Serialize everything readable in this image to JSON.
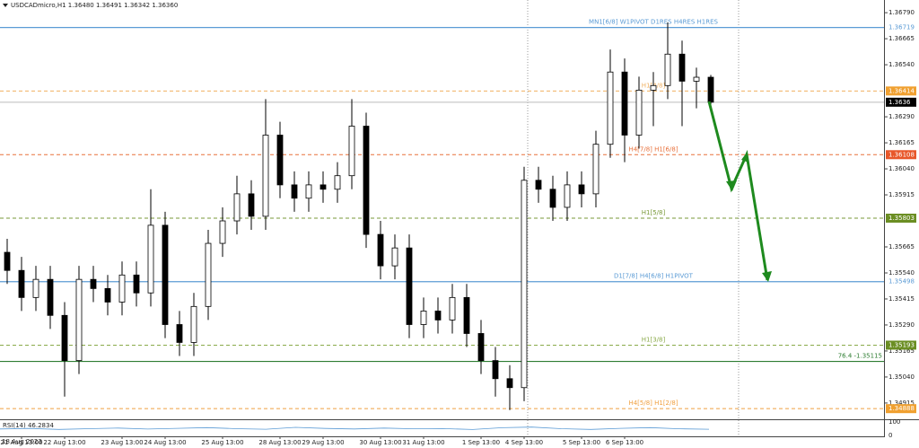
{
  "chart_data": {
    "type": "candlestick",
    "title": "USDCADmicro,H1 1.36480 1.36491 1.36342 1.36360",
    "categories": [
      null,
      "21 Aug 13:00",
      null,
      null,
      "22 Aug 13:00",
      null,
      null,
      null,
      "23 Aug 13:00",
      null,
      null,
      "24 Aug 13:00",
      null,
      null,
      null,
      "25 Aug 13:00",
      null,
      null,
      null,
      "28 Aug 13:00",
      null,
      null,
      "29 Aug 13:00",
      null,
      null,
      null,
      "30 Aug 13:00",
      null,
      null,
      "31 Aug 13:00",
      null,
      null,
      null,
      "1 Sep 13:00",
      null,
      null,
      "4 Sep 13:00",
      null,
      null,
      null,
      "5 Sep 13:00",
      null,
      null,
      "6 Sep 13:00",
      null,
      null,
      null,
      null,
      null,
      null
    ],
    "first_label": "18 Aug 2023",
    "open": [
      1.35639,
      1.35552,
      1.35422,
      1.35509,
      1.35336,
      1.35119,
      1.35509,
      1.35465,
      1.354,
      1.3553,
      1.35444,
      1.35769,
      1.35292,
      1.35206,
      1.35379,
      1.35682,
      1.3579,
      1.3592,
      1.35812,
      1.36202,
      1.35963,
      1.35899,
      1.35963,
      1.35942,
      1.36007,
      1.36245,
      1.35725,
      1.35574,
      1.3566,
      1.35292,
      1.35357,
      1.35314,
      1.35422,
      1.35249,
      1.35119,
      1.35032,
      1.34989,
      1.35985,
      1.35942,
      1.35855,
      1.35963,
      1.3592,
      1.36158,
      1.36505,
      1.36202,
      1.36418,
      1.3644,
      1.36591,
      1.36461,
      1.3648
    ],
    "high": [
      1.35704,
      1.35617,
      1.35574,
      1.35574,
      1.354,
      1.35574,
      1.35574,
      1.3553,
      1.35595,
      1.35595,
      1.35942,
      1.35834,
      1.35357,
      1.35444,
      1.35747,
      1.35855,
      1.36007,
      1.35985,
      1.36375,
      1.36266,
      1.36028,
      1.36028,
      1.36028,
      1.36072,
      1.36375,
      1.3631,
      1.3579,
      1.35725,
      1.35725,
      1.35422,
      1.35422,
      1.35487,
      1.35487,
      1.35314,
      1.35184,
      1.35097,
      1.3605,
      1.3605,
      1.36007,
      1.36028,
      1.36028,
      1.36223,
      1.36613,
      1.3657,
      1.36483,
      1.36505,
      1.36743,
      1.36656,
      1.36526,
      1.36491
    ],
    "low": [
      1.35487,
      1.35357,
      1.35357,
      1.35271,
      1.34946,
      1.35054,
      1.354,
      1.35336,
      1.35336,
      1.35379,
      1.35379,
      1.35227,
      1.35141,
      1.35141,
      1.35314,
      1.35617,
      1.35725,
      1.35747,
      1.35747,
      1.35899,
      1.35834,
      1.35834,
      1.35877,
      1.35877,
      1.35942,
      1.3566,
      1.35509,
      1.35509,
      1.35227,
      1.35227,
      1.35249,
      1.35249,
      1.35184,
      1.35054,
      1.34946,
      1.34881,
      1.34924,
      1.35877,
      1.3579,
      1.3579,
      1.35855,
      1.35855,
      1.36093,
      1.36072,
      1.36137,
      1.36245,
      1.36375,
      1.36245,
      1.36331,
      1.36342
    ],
    "close": [
      1.35552,
      1.35422,
      1.35509,
      1.35336,
      1.35119,
      1.35509,
      1.35465,
      1.354,
      1.3553,
      1.35444,
      1.35769,
      1.35292,
      1.35206,
      1.35379,
      1.35682,
      1.3579,
      1.3592,
      1.35812,
      1.36202,
      1.35963,
      1.35899,
      1.35963,
      1.35942,
      1.36007,
      1.36245,
      1.35725,
      1.35574,
      1.3566,
      1.35292,
      1.35357,
      1.35314,
      1.35422,
      1.35249,
      1.35119,
      1.35032,
      1.34989,
      1.35985,
      1.35942,
      1.35855,
      1.35963,
      1.3592,
      1.36158,
      1.36505,
      1.36202,
      1.36418,
      1.3644,
      1.36591,
      1.36461,
      1.3648,
      1.3636
    ],
    "ylim": [
      1.34837,
      1.36851
    ],
    "yticks": [
      {
        "value": 1.3679,
        "label": "1.36790"
      },
      1.36665,
      {
        "value": 1.3654,
        "label": "1.36540"
      },
      {
        "value": 1.3629,
        "label": "1.36290"
      },
      1.36165,
      {
        "value": 1.3604,
        "label": "1.36040"
      },
      1.35915,
      1.35665,
      {
        "value": 1.3554,
        "label": "1.35540"
      },
      1.35415,
      {
        "value": 1.3529,
        "label": "1.35290"
      },
      1.35165,
      {
        "value": 1.3504,
        "label": "1.35040"
      },
      1.34915
    ],
    "levels": [
      {
        "value": 1.36719,
        "label": "MN1[6/8] W1PIVOT D1RES H4RES H1RES",
        "color": "#5b9bd5",
        "dashed": false,
        "box": "#ffffff"
      },
      {
        "value": 1.36414,
        "label": "H1[4/8]",
        "color": "#f0b060",
        "dashed": true,
        "box": "#f0a030"
      },
      {
        "value": 1.3636,
        "color": "#c8c8c8",
        "dashed": false,
        "box": "#000000"
      },
      {
        "value": 1.36108,
        "label": "H4[7/8] H1[6/8]",
        "color": "#e8703a",
        "dashed": true,
        "box": "#e8572a"
      },
      {
        "value": 1.35803,
        "label": "H1[5/8]",
        "color": "#7a9a3a",
        "dashed": true,
        "box": "#6b8e23"
      },
      {
        "value": 1.35498,
        "label": "D1[7/8] H4[6/8] H1PIVOT",
        "color": "#5b9bd5",
        "dashed": false,
        "box": "#ffffff"
      },
      {
        "value": 1.35193,
        "label": "H1[3/8]",
        "color": "#8aaa4a",
        "dashed": true,
        "box": "#6b8e23"
      },
      {
        "value": 1.35115,
        "label": "76.4 -1.35115",
        "color": "#2e7d32",
        "dashed": false
      },
      {
        "value": 1.34888,
        "label": "H4[5/8] H1[2/8]",
        "color": "#f0a040",
        "dashed": true,
        "box": "#f0a030"
      }
    ],
    "rsi": {
      "label": "RSI(14) 46.2834",
      "ylim": [
        0,
        100
      ],
      "yticks": [
        100,
        0
      ],
      "color": "#5b9bd5",
      "values": [
        48,
        52,
        45,
        50,
        55,
        47,
        53,
        58,
        50,
        46,
        60,
        52,
        48,
        55,
        49,
        51,
        44,
        57,
        62,
        50,
        45,
        53,
        58,
        49,
        46
      ]
    }
  }
}
